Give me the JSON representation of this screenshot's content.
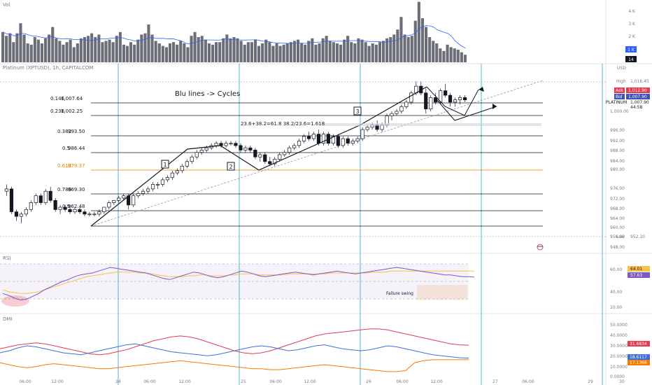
{
  "panes": {
    "volume": {
      "label": "Vol",
      "ticks": [
        "4 K",
        "3 K",
        "2 K",
        "1 K"
      ],
      "badge_value": "1 K",
      "badge_count": "14",
      "values": [
        2.4,
        2.1,
        2.3,
        1.6,
        2.3,
        3.1,
        2.2,
        1.5,
        1.4,
        2.0,
        1.8,
        1.5,
        1.9,
        2.2,
        2.8,
        1.9,
        1.7,
        1.4,
        1.6,
        1.8,
        1.2,
        1.5,
        1.9,
        2.0,
        2.1,
        2.3,
        2.0,
        2.2,
        1.6,
        1.7,
        1.8,
        1.6,
        2.1,
        2.4,
        1.4,
        1.3,
        1.6,
        1.4,
        1.8,
        2.2,
        2.3,
        3.0,
        2.2,
        1.7,
        1.5,
        1.3,
        1.2,
        1.5,
        1.6,
        1.4,
        1.7,
        1.5,
        1.2,
        2.1,
        2.4,
        2.0,
        2.1,
        1.8,
        1.5,
        1.4,
        1.6,
        1.6,
        1.9,
        2.2,
        1.9,
        2.0,
        1.9,
        1.7,
        1.4,
        1.6,
        1.6,
        1.8,
        1.3,
        1.5,
        1.8,
        1.6,
        1.3,
        1.5,
        1.3,
        1.4,
        1.5,
        1.6,
        1.7,
        1.8,
        1.5,
        1.4,
        1.7,
        1.9,
        1.4,
        1.5,
        1.9,
        2.1,
        1.7,
        1.6,
        1.5,
        1.4,
        1.8,
        2.1,
        1.6,
        1.5,
        1.9,
        1.8,
        1.6,
        1.3,
        1.5,
        1.4,
        1.6,
        1.7,
        1.9,
        2.0,
        2.2,
        2.6,
        3.6,
        2.2,
        2.0,
        2.1,
        3.3,
        4.8,
        3.5,
        2.8,
        2.0,
        1.7,
        1.5,
        1.1,
        0.9,
        1.4,
        1.2,
        1.1,
        1.0,
        0.8,
        0.6
      ]
    },
    "price": {
      "title": "Platinum (XPTUSD), 1h, CAPITALCOM",
      "y_ticks": [
        "1,000.00",
        "996.00",
        "992.00",
        "988.00",
        "984.00",
        "980.00",
        "976.00",
        "972.00",
        "968.00",
        "964.00",
        "960.00",
        "956.00",
        "948.00"
      ],
      "axis_currency": "USD",
      "high_label": "High",
      "high_value": "1,016.45",
      "low_label": "Low",
      "low_value": "952.10",
      "ask_label": "Ask",
      "ask_value": "1,012.90",
      "bid_label": "Bid",
      "bid_value": "1,007.90",
      "symbol_label": "PLATINUM",
      "symbol_value": "1,007.90",
      "countdown": "44:58",
      "annotation": "Blu lines -> Cycles",
      "wave_labels": [
        "1",
        "2",
        "3"
      ],
      "fib_text": "23.6+38.2=61.8  38.2/23.6=1.618",
      "fib_levels": [
        {
          "ratio": "0.146",
          "value": "1,007.64",
          "color": "#131722"
        },
        {
          "ratio": "0.236",
          "value": "1,002.25",
          "color": "#131722"
        },
        {
          "ratio": "0.382",
          "value": "993.50",
          "color": "#131722"
        },
        {
          "ratio": "0.5",
          "value": "986.44",
          "color": "#131722"
        },
        {
          "ratio": "0.618",
          "value": "979.37",
          "color": "#f57c00"
        },
        {
          "ratio": "0.786",
          "value": "969.30",
          "color": "#131722"
        },
        {
          "ratio": "0.9",
          "value": "962.48",
          "color": "#131722"
        }
      ]
    },
    "rsi": {
      "label": "RSI",
      "ticks": [
        "60.00",
        "40.00",
        "20.00"
      ],
      "value1": "64.01",
      "value2": "57.63",
      "annotation": "Failure swing",
      "color1": "#7e57c2",
      "color2": "#f7c24a"
    },
    "dmi": {
      "label": "DMI",
      "ticks": [
        "50.0000",
        "40.0000",
        "30.0000",
        "20.0000",
        "10.0000",
        "0.0000"
      ],
      "value_red": "31.6834",
      "value_blue": "18.6117",
      "value_orange": "17.1366",
      "color_red": "#e53952",
      "color_blue": "#3f6fd6",
      "color_orange": "#f57c00"
    }
  },
  "time_axis": [
    "06:00",
    "12:00",
    "24",
    "06:00",
    "12:00",
    "25",
    "06:00",
    "12:00",
    "26",
    "06:00",
    "12:00",
    "27",
    "06:00",
    "29",
    "30"
  ],
  "chart_data": {
    "type": "candlestick",
    "title": "Platinum (XPTUSD), 1h, CAPITALCOM",
    "ylim": [
      946,
      1018
    ],
    "candles": [
      {
        "o": 968,
        "h": 971,
        "l": 966,
        "c": 969
      },
      {
        "o": 969,
        "h": 970,
        "l": 958,
        "c": 959
      },
      {
        "o": 959,
        "h": 960,
        "l": 955,
        "c": 957
      },
      {
        "o": 957,
        "h": 959,
        "l": 954,
        "c": 958
      },
      {
        "o": 958,
        "h": 961,
        "l": 957,
        "c": 960
      },
      {
        "o": 960,
        "h": 964,
        "l": 959,
        "c": 963
      },
      {
        "o": 963,
        "h": 967,
        "l": 962,
        "c": 966
      },
      {
        "o": 966,
        "h": 967,
        "l": 962,
        "c": 963
      },
      {
        "o": 963,
        "h": 969,
        "l": 962,
        "c": 968
      },
      {
        "o": 968,
        "h": 970,
        "l": 963,
        "c": 964
      },
      {
        "o": 964,
        "h": 965,
        "l": 959,
        "c": 960
      },
      {
        "o": 960,
        "h": 962,
        "l": 958,
        "c": 961
      },
      {
        "o": 961,
        "h": 962,
        "l": 959,
        "c": 960
      },
      {
        "o": 960,
        "h": 961,
        "l": 958,
        "c": 959
      },
      {
        "o": 959,
        "h": 961,
        "l": 958,
        "c": 960
      },
      {
        "o": 960,
        "h": 961,
        "l": 958,
        "c": 959
      },
      {
        "o": 959,
        "h": 960,
        "l": 957,
        "c": 958
      },
      {
        "o": 958,
        "h": 959,
        "l": 957,
        "c": 958
      },
      {
        "o": 958,
        "h": 959,
        "l": 957,
        "c": 958
      },
      {
        "o": 958,
        "h": 960,
        "l": 957,
        "c": 959
      },
      {
        "o": 959,
        "h": 961,
        "l": 958,
        "c": 961
      },
      {
        "o": 961,
        "h": 964,
        "l": 960,
        "c": 963
      },
      {
        "o": 963,
        "h": 964,
        "l": 962,
        "c": 964
      },
      {
        "o": 964,
        "h": 966,
        "l": 963,
        "c": 965
      },
      {
        "o": 965,
        "h": 967,
        "l": 964,
        "c": 966
      },
      {
        "o": 966,
        "h": 967,
        "l": 960,
        "c": 962
      },
      {
        "o": 962,
        "h": 967,
        "l": 961,
        "c": 966
      },
      {
        "o": 966,
        "h": 968,
        "l": 965,
        "c": 967
      },
      {
        "o": 967,
        "h": 969,
        "l": 966,
        "c": 968
      },
      {
        "o": 968,
        "h": 970,
        "l": 967,
        "c": 969
      },
      {
        "o": 969,
        "h": 972,
        "l": 968,
        "c": 971
      },
      {
        "o": 971,
        "h": 972,
        "l": 969,
        "c": 971
      },
      {
        "o": 971,
        "h": 974,
        "l": 970,
        "c": 973
      },
      {
        "o": 973,
        "h": 975,
        "l": 972,
        "c": 974
      },
      {
        "o": 974,
        "h": 977,
        "l": 973,
        "c": 976
      },
      {
        "o": 976,
        "h": 978,
        "l": 975,
        "c": 977
      },
      {
        "o": 977,
        "h": 980,
        "l": 976,
        "c": 979
      },
      {
        "o": 979,
        "h": 982,
        "l": 978,
        "c": 981
      },
      {
        "o": 981,
        "h": 984,
        "l": 980,
        "c": 983
      },
      {
        "o": 983,
        "h": 986,
        "l": 982,
        "c": 985
      },
      {
        "o": 985,
        "h": 987,
        "l": 984,
        "c": 986
      },
      {
        "o": 986,
        "h": 988,
        "l": 985,
        "c": 987
      },
      {
        "o": 987,
        "h": 989,
        "l": 986,
        "c": 988
      },
      {
        "o": 988,
        "h": 990,
        "l": 987,
        "c": 989
      },
      {
        "o": 989,
        "h": 990,
        "l": 987,
        "c": 988
      },
      {
        "o": 988,
        "h": 990,
        "l": 987,
        "c": 989
      },
      {
        "o": 989,
        "h": 990,
        "l": 988,
        "c": 989
      },
      {
        "o": 989,
        "h": 990,
        "l": 987,
        "c": 988
      },
      {
        "o": 988,
        "h": 989,
        "l": 985,
        "c": 986
      },
      {
        "o": 986,
        "h": 988,
        "l": 985,
        "c": 987
      },
      {
        "o": 987,
        "h": 988,
        "l": 985,
        "c": 986
      },
      {
        "o": 986,
        "h": 987,
        "l": 982,
        "c": 983
      },
      {
        "o": 983,
        "h": 985,
        "l": 981,
        "c": 984
      },
      {
        "o": 984,
        "h": 985,
        "l": 980,
        "c": 981
      },
      {
        "o": 981,
        "h": 983,
        "l": 979,
        "c": 980
      },
      {
        "o": 980,
        "h": 983,
        "l": 979,
        "c": 982
      },
      {
        "o": 982,
        "h": 985,
        "l": 981,
        "c": 984
      },
      {
        "o": 984,
        "h": 986,
        "l": 983,
        "c": 985
      },
      {
        "o": 985,
        "h": 988,
        "l": 984,
        "c": 987
      },
      {
        "o": 987,
        "h": 989,
        "l": 986,
        "c": 988
      },
      {
        "o": 988,
        "h": 991,
        "l": 987,
        "c": 990
      },
      {
        "o": 990,
        "h": 993,
        "l": 989,
        "c": 992
      },
      {
        "o": 992,
        "h": 994,
        "l": 990,
        "c": 991
      },
      {
        "o": 991,
        "h": 994,
        "l": 990,
        "c": 993
      },
      {
        "o": 993,
        "h": 995,
        "l": 988,
        "c": 989
      },
      {
        "o": 989,
        "h": 994,
        "l": 988,
        "c": 993
      },
      {
        "o": 993,
        "h": 994,
        "l": 988,
        "c": 989
      },
      {
        "o": 989,
        "h": 993,
        "l": 988,
        "c": 992
      },
      {
        "o": 992,
        "h": 993,
        "l": 987,
        "c": 988
      },
      {
        "o": 988,
        "h": 992,
        "l": 987,
        "c": 991
      },
      {
        "o": 991,
        "h": 992,
        "l": 988,
        "c": 989
      },
      {
        "o": 989,
        "h": 991,
        "l": 988,
        "c": 990
      },
      {
        "o": 990,
        "h": 992,
        "l": 989,
        "c": 991
      },
      {
        "o": 991,
        "h": 996,
        "l": 990,
        "c": 995
      },
      {
        "o": 995,
        "h": 997,
        "l": 994,
        "c": 996
      },
      {
        "o": 996,
        "h": 998,
        "l": 995,
        "c": 997
      },
      {
        "o": 997,
        "h": 999,
        "l": 994,
        "c": 995
      },
      {
        "o": 995,
        "h": 998,
        "l": 994,
        "c": 997
      },
      {
        "o": 997,
        "h": 1002,
        "l": 996,
        "c": 1001
      },
      {
        "o": 1001,
        "h": 1003,
        "l": 999,
        "c": 1002
      },
      {
        "o": 1002,
        "h": 1004,
        "l": 1001,
        "c": 1003
      },
      {
        "o": 1003,
        "h": 1006,
        "l": 1002,
        "c": 1005
      },
      {
        "o": 1005,
        "h": 1008,
        "l": 1004,
        "c": 1007
      },
      {
        "o": 1007,
        "h": 1012,
        "l": 1006,
        "c": 1011
      },
      {
        "o": 1011,
        "h": 1016,
        "l": 1010,
        "c": 1014
      },
      {
        "o": 1014,
        "h": 1016,
        "l": 1010,
        "c": 1011
      },
      {
        "o": 1011,
        "h": 1013,
        "l": 1002,
        "c": 1004
      },
      {
        "o": 1004,
        "h": 1010,
        "l": 1003,
        "c": 1009
      },
      {
        "o": 1009,
        "h": 1011,
        "l": 1006,
        "c": 1007
      },
      {
        "o": 1007,
        "h": 1013,
        "l": 1006,
        "c": 1012
      },
      {
        "o": 1012,
        "h": 1015,
        "l": 1009,
        "c": 1010
      },
      {
        "o": 1010,
        "h": 1011,
        "l": 1005,
        "c": 1007
      },
      {
        "o": 1007,
        "h": 1009,
        "l": 1005,
        "c": 1008
      },
      {
        "o": 1008,
        "h": 1010,
        "l": 1006,
        "c": 1009
      },
      {
        "o": 1009,
        "h": 1010,
        "l": 1007,
        "c": 1008
      }
    ],
    "rsi": {
      "series1": [
        40,
        38,
        35,
        33,
        34,
        37,
        40,
        44,
        47,
        50,
        53,
        55,
        58,
        60,
        61,
        62,
        64,
        66,
        68,
        67,
        66,
        65,
        64,
        63,
        62,
        60,
        58,
        56,
        55,
        57,
        59,
        61,
        63,
        62,
        60,
        58,
        57,
        58,
        60,
        62,
        64,
        63,
        61,
        59,
        58,
        59,
        60,
        61,
        62,
        63,
        62,
        61,
        60,
        61,
        62,
        63,
        64,
        63,
        62,
        61,
        62,
        63,
        64,
        65,
        66,
        67,
        68,
        67,
        66,
        65,
        64,
        63,
        62,
        61,
        60,
        60,
        59,
        58,
        58,
        57.63
      ],
      "series2": [
        44,
        42,
        41,
        40,
        40,
        41,
        42,
        44,
        46,
        48,
        50,
        52,
        54,
        56,
        58,
        59,
        60,
        61,
        62,
        63,
        63,
        63,
        63,
        62,
        62,
        61,
        60,
        59,
        58,
        58,
        58,
        59,
        59,
        60,
        60,
        59,
        59,
        59,
        60,
        60,
        61,
        61,
        61,
        60,
        60,
        60,
        60,
        60,
        61,
        61,
        61,
        61,
        61,
        61,
        61,
        62,
        62,
        62,
        62,
        62,
        62,
        62,
        63,
        63,
        63,
        64,
        64,
        64,
        64,
        64,
        64,
        64,
        64,
        64,
        64,
        64,
        64,
        64,
        64,
        64.01
      ]
    },
    "dmi": {
      "red": [
        28,
        30,
        32,
        33,
        34,
        33,
        31,
        29,
        27,
        25,
        23,
        22,
        23,
        25,
        27,
        30,
        33,
        36,
        38,
        40,
        41,
        40,
        38,
        35,
        32,
        29,
        26,
        24,
        23,
        24,
        26,
        29,
        32,
        35,
        38,
        41,
        43,
        44,
        45,
        46,
        47,
        48,
        48,
        47,
        45,
        43,
        41,
        39,
        37,
        35,
        33,
        32,
        31.6834
      ],
      "blue": [
        24,
        26,
        29,
        31,
        30,
        28,
        26,
        24,
        23,
        22,
        24,
        26,
        28,
        30,
        32,
        33,
        31,
        29,
        27,
        25,
        24,
        23,
        22,
        21,
        22,
        24,
        26,
        28,
        30,
        31,
        30,
        28,
        26,
        27,
        29,
        31,
        32,
        30,
        28,
        27,
        26,
        27,
        29,
        31,
        30,
        28,
        26,
        24,
        22,
        21,
        20,
        19,
        18.6117
      ],
      "orange": [
        14,
        12,
        10,
        9,
        10,
        12,
        13,
        12,
        11,
        10,
        9,
        8,
        8,
        9,
        10,
        11,
        12,
        13,
        14,
        15,
        16,
        15,
        14,
        13,
        12,
        11,
        10,
        9,
        8,
        8,
        7,
        7,
        8,
        9,
        10,
        11,
        12,
        11,
        10,
        9,
        8,
        7,
        6,
        5,
        5,
        6,
        14,
        16,
        17,
        17,
        17,
        17,
        17.1366
      ]
    }
  }
}
